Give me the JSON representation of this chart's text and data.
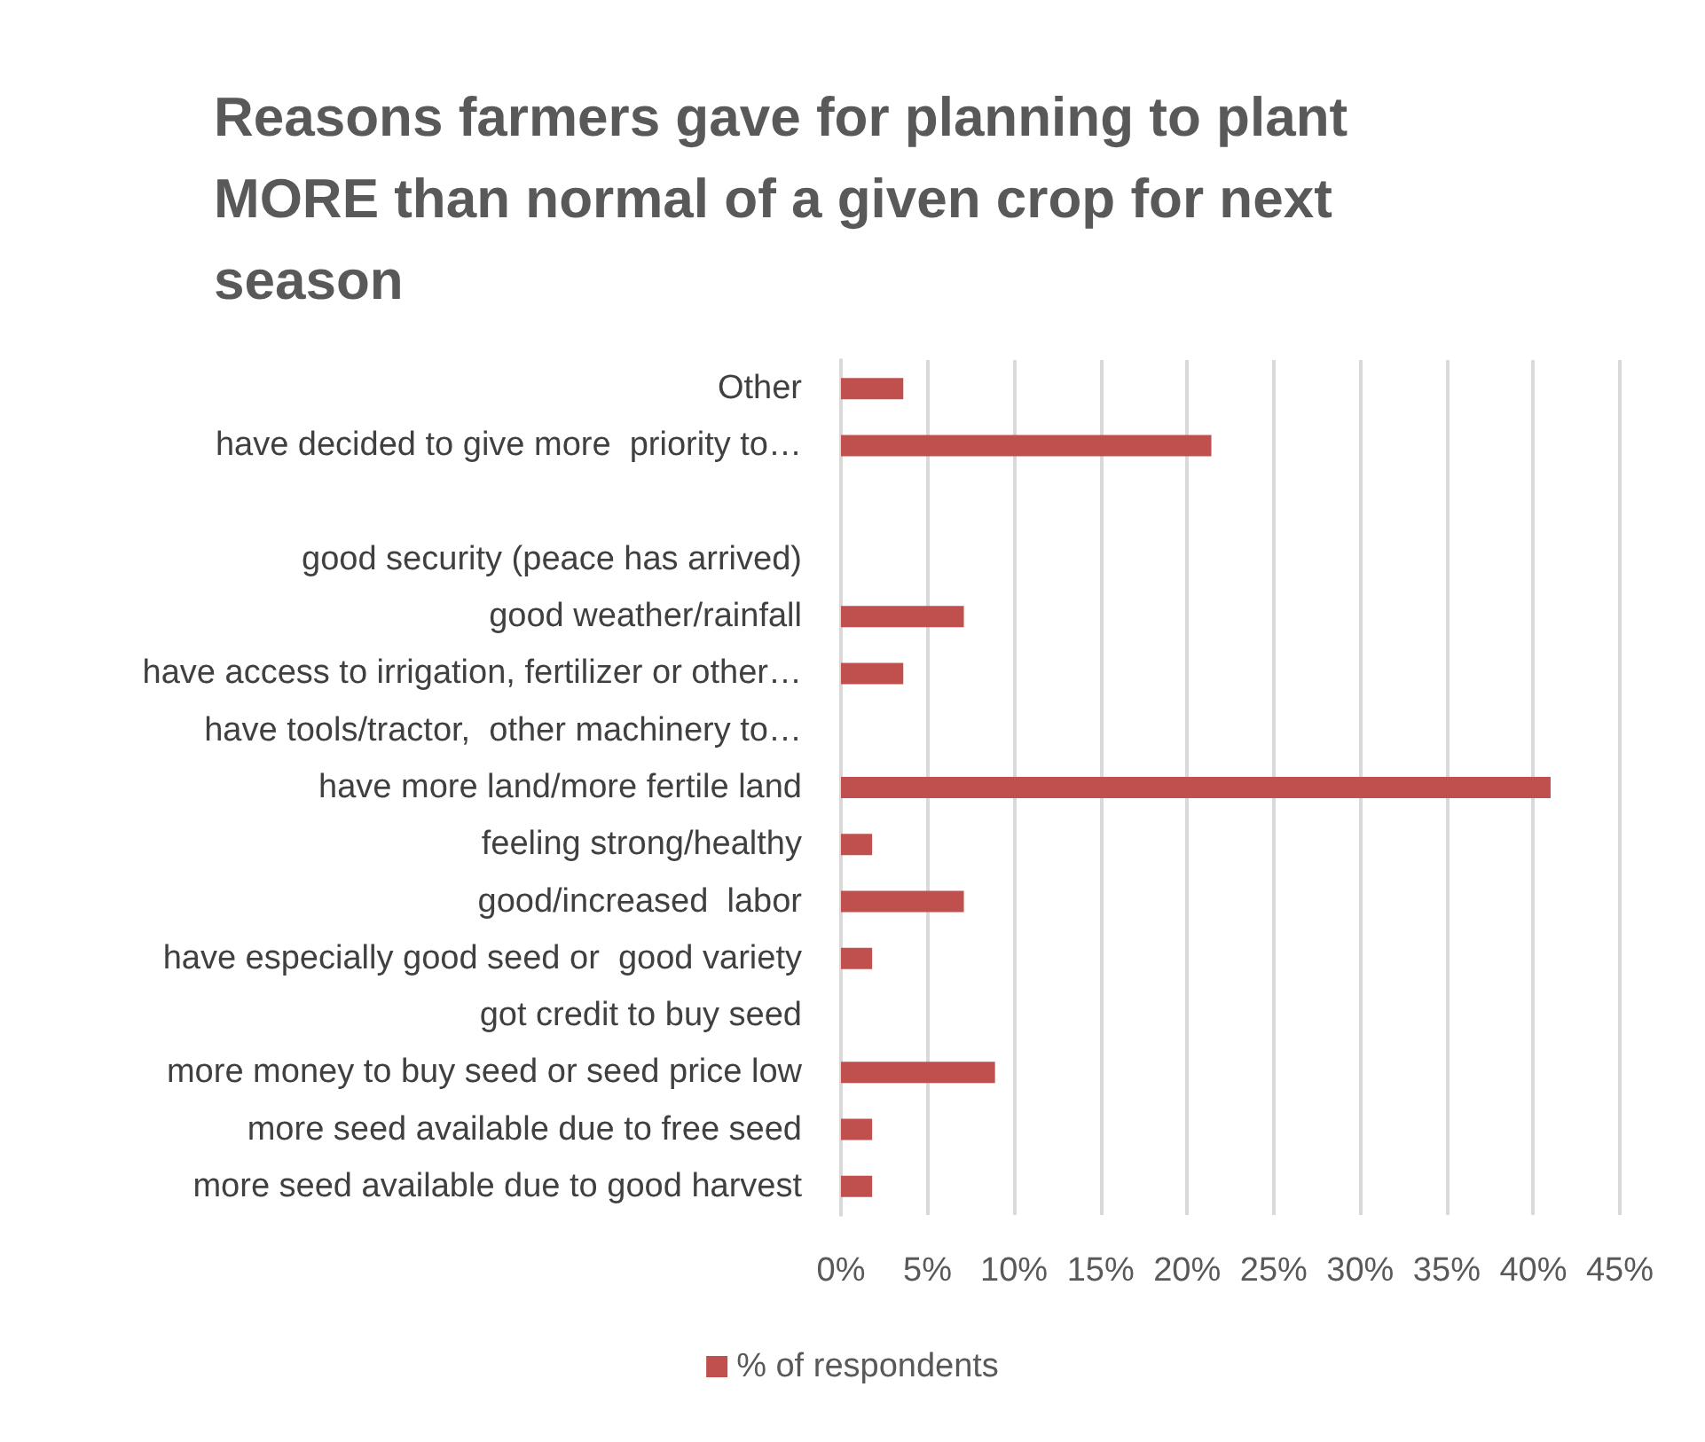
{
  "chart_data": {
    "type": "bar",
    "orientation": "horizontal",
    "title": "Reasons farmers gave for planning to plant MORE than normal of a given crop for next season",
    "categories": [
      "Other",
      "have decided to give more  priority to…",
      null,
      "good security (peace has arrived)",
      "good weather/rainfall",
      "have access to irrigation, fertilizer or other…",
      "have tools/tractor,  other machinery to…",
      "have more land/more fertile land",
      "feeling strong/healthy",
      "good/increased  labor",
      "have especially good seed or  good variety",
      "got credit to buy seed",
      "more money to buy seed or seed price low",
      "more seed available due to free seed",
      "more seed available due to good harvest"
    ],
    "series": [
      {
        "name": "% of respondents",
        "color": "#c0504d",
        "values": [
          3.6,
          21.4,
          null,
          0,
          7.1,
          3.6,
          0,
          41.0,
          1.8,
          7.1,
          1.8,
          0,
          8.9,
          1.8,
          1.8
        ]
      }
    ],
    "xlim": [
      0,
      45
    ],
    "xticks": [
      {
        "value": 0,
        "label": "0%"
      },
      {
        "value": 5,
        "label": "5%"
      },
      {
        "value": 10,
        "label": "10%"
      },
      {
        "value": 15,
        "label": "15%"
      },
      {
        "value": 20,
        "label": "20%"
      },
      {
        "value": 25,
        "label": "25%"
      },
      {
        "value": 30,
        "label": "30%"
      },
      {
        "value": 35,
        "label": "35%"
      },
      {
        "value": 40,
        "label": "40%"
      },
      {
        "value": 45,
        "label": "45%"
      }
    ],
    "grid": "x",
    "legend": "bottom"
  }
}
